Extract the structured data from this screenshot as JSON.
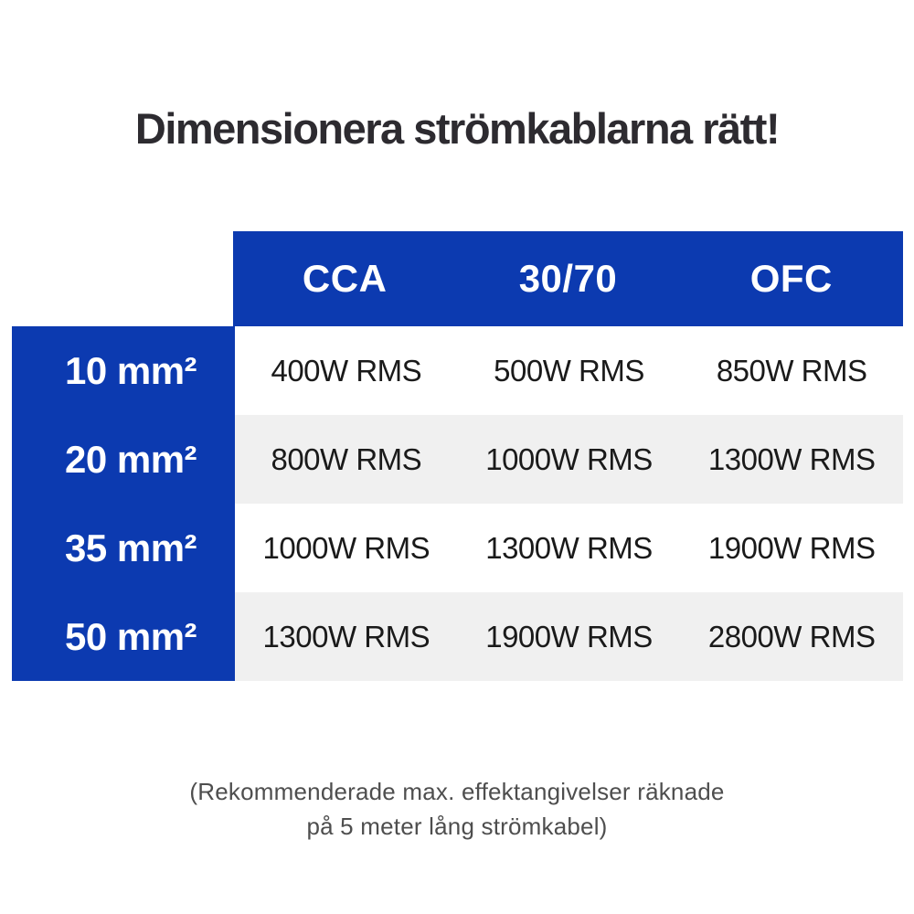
{
  "title": "Dimensionera strömkablarna rätt!",
  "table": {
    "column_headers": [
      "CCA",
      "30/70",
      "OFC"
    ],
    "row_headers": [
      "10 mm²",
      "20 mm²",
      "35 mm²",
      "50 mm²"
    ],
    "rows": [
      [
        "400W RMS",
        "500W RMS",
        "850W RMS"
      ],
      [
        "800W RMS",
        "1000W RMS",
        "1300W RMS"
      ],
      [
        "1000W RMS",
        "1300W RMS",
        "1900W RMS"
      ],
      [
        "1300W RMS",
        "1900W RMS",
        "2800W RMS"
      ]
    ]
  },
  "footnote": {
    "line1": "(Rekommenderade max. effektangivelser räknade",
    "line2": "på 5 meter lång strömkabel)"
  },
  "colors": {
    "accent_blue": "#0c3ab0",
    "stripe_gray": "#f0f0f0",
    "title_text": "#2d2b30",
    "data_text": "#1a1a1a",
    "footnote_text": "#4e4e4e",
    "header_text": "#ffffff"
  },
  "chart_data": {
    "type": "table",
    "title": "Dimensionera strömkablarna rätt!",
    "columns": [
      "",
      "CCA",
      "30/70",
      "OFC"
    ],
    "rows": [
      [
        "10 mm²",
        "400W RMS",
        "500W RMS",
        "850W RMS"
      ],
      [
        "20 mm²",
        "800W RMS",
        "1000W RMS",
        "1300W RMS"
      ],
      [
        "35 mm²",
        "1000W RMS",
        "1300W RMS",
        "1900W RMS"
      ],
      [
        "50 mm²",
        "1300W RMS",
        "1900W RMS",
        "2800W RMS"
      ]
    ],
    "footnote": "(Rekommenderade max. effektangivelser räknade på 5 meter lång strömkabel)",
    "layout": {
      "header_style": "blue band, white bold text",
      "row_header_style": "blue column, white bold text",
      "body_style": "alternating white and light-gray striped rows"
    }
  }
}
